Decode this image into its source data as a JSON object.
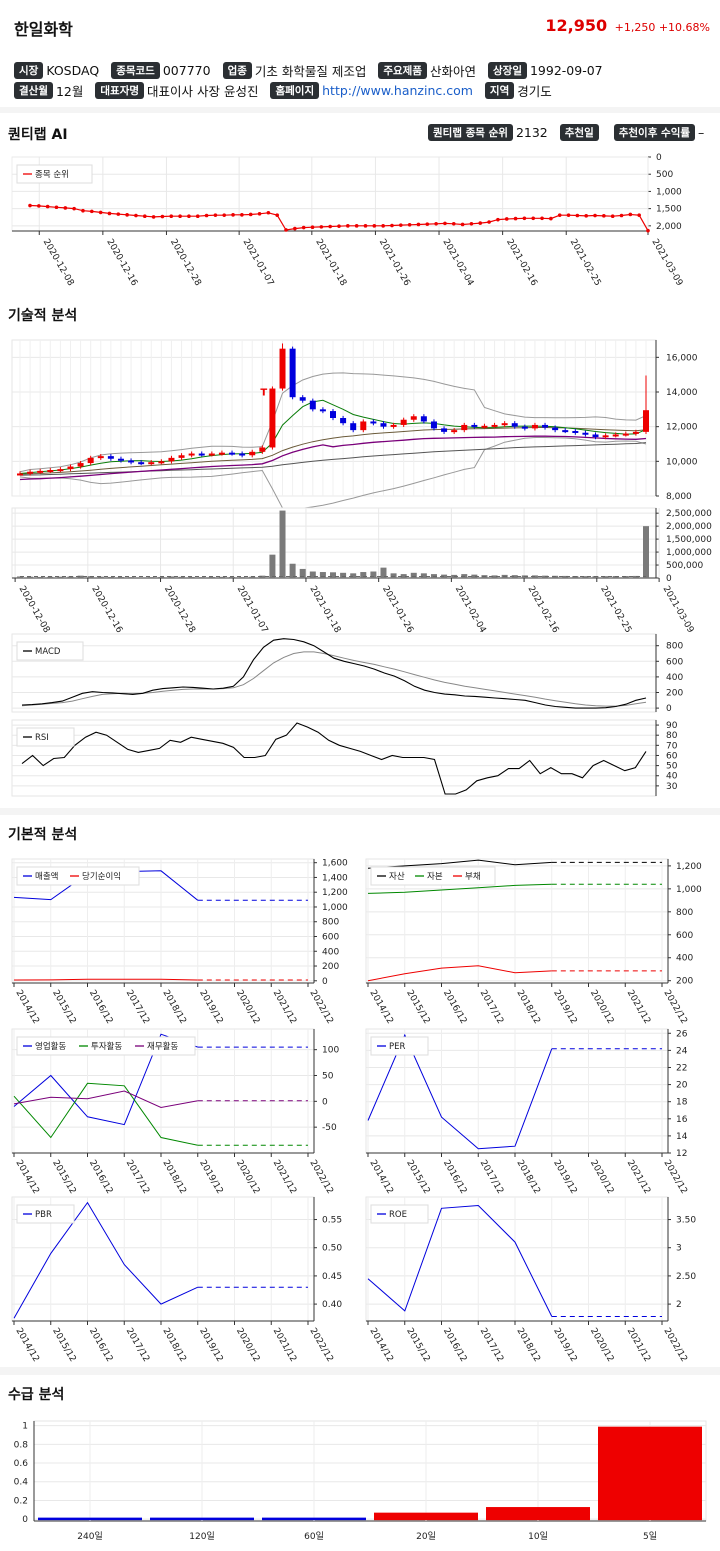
{
  "header": {
    "name": "한일화학",
    "price": "12,950",
    "change": "+1,250",
    "change_pct": "+10.68%"
  },
  "info": {
    "row1": [
      {
        "tag": "시장",
        "value": "KOSDAQ"
      },
      {
        "tag": "종목코드",
        "value": "007770"
      },
      {
        "tag": "업종",
        "value": "기초 화학물질 제조업"
      },
      {
        "tag": "주요제품",
        "value": "산화아연"
      },
      {
        "tag": "상장일",
        "value": "1992-09-07"
      }
    ],
    "row2": [
      {
        "tag": "결산월",
        "value": "12월"
      },
      {
        "tag": "대표자명",
        "value": "대표이사 사장 윤성진"
      },
      {
        "tag": "홈페이지",
        "value": "http://www.hanzinc.com",
        "link": true
      },
      {
        "tag": "지역",
        "value": "경기도"
      }
    ]
  },
  "quant": {
    "title": "퀀티랩 AI",
    "rank_label": "퀀티랩 종목 순위",
    "rank_value": "2132",
    "rec_label": "추천일",
    "ret_label": "추천이후 수익률",
    "ret_value": "–"
  },
  "sections": {
    "tech": "기술적 분석",
    "fund": "기본적 분석",
    "supply": "수급 분석"
  },
  "accent": {
    "red": "#ee0000",
    "blue": "#0000dd",
    "green": "#008800",
    "purple": "#7a007a"
  },
  "chart_data": [
    {
      "id": "rank",
      "type": "line",
      "series": [
        {
          "name": "종목 순위",
          "color": "#ee0000",
          "values": [
            1410,
            1420,
            1440,
            1460,
            1480,
            1500,
            1560,
            1580,
            1610,
            1640,
            1660,
            1680,
            1700,
            1720,
            1740,
            1730,
            1720,
            1720,
            1720,
            1720,
            1700,
            1690,
            1690,
            1680,
            1680,
            1670,
            1650,
            1620,
            1690,
            2120,
            2080,
            2050,
            2040,
            2030,
            2020,
            2010,
            2000,
            2000,
            2000,
            2000,
            2000,
            1990,
            1980,
            1970,
            1960,
            1950,
            1940,
            1930,
            1940,
            1960,
            1940,
            1920,
            1890,
            1820,
            1800,
            1790,
            1780,
            1780,
            1780,
            1790,
            1690,
            1690,
            1700,
            1710,
            1700,
            1710,
            1720,
            1700,
            1670,
            1690,
            2140
          ]
        }
      ],
      "x_ticks": [
        "2020-12-08",
        "2020-12-16",
        "2020-12-28",
        "2021-01-07",
        "2021-01-18",
        "2021-01-26",
        "2021-02-04",
        "2021-02-16",
        "2021-02-25",
        "2021-03-09"
      ],
      "y_ticks": [
        "0",
        "500",
        "1,000",
        "1,500",
        "2,000"
      ],
      "ylim": [
        0,
        2150
      ],
      "y_inverted": true
    },
    {
      "id": "candles",
      "type": "candlestick",
      "close": [
        9300,
        9400,
        9450,
        9500,
        9550,
        9700,
        9900,
        10200,
        10300,
        10150,
        10050,
        9950,
        9900,
        9950,
        10000,
        10200,
        10350,
        10450,
        10400,
        10450,
        10500,
        10450,
        10350,
        10550,
        10800,
        14200,
        16500,
        13700,
        13500,
        13000,
        12900,
        12500,
        12200,
        11800,
        12300,
        12200,
        12000,
        12100,
        12400,
        12600,
        12300,
        11900,
        11700,
        11800,
        12100,
        12000,
        12050,
        12100,
        12200,
        12000,
        11900,
        12100,
        11950,
        11800,
        11750,
        11650,
        11550,
        11400,
        11500,
        11550,
        11600,
        11700,
        12950
      ],
      "ylim": [
        8000,
        17000
      ],
      "y_ticks": [
        "8,000",
        "10,000",
        "12,000",
        "14,000",
        "16,000"
      ],
      "annotation": "T",
      "ma_short": [
        9300,
        9350,
        9400,
        9450,
        9500,
        9580,
        9670,
        9780,
        9890,
        9980,
        10010,
        10030,
        10040,
        10010,
        9990,
        10020,
        10070,
        10150,
        10250,
        10330,
        10390,
        10430,
        10440,
        10460,
        10520,
        11060,
        12090,
        12640,
        13150,
        13430,
        13520,
        13260,
        13000,
        12700,
        12550,
        12420,
        12290,
        12180,
        12150,
        12190,
        12220,
        12190,
        12100,
        12030,
        11990,
        11960,
        11940,
        11950,
        11990,
        12020,
        12030,
        12030,
        12020,
        11990,
        11940,
        11880,
        11800,
        11720,
        11660,
        11610,
        11570,
        11580,
        11830
      ],
      "ma_mid": [
        9250,
        9280,
        9300,
        9330,
        9360,
        9400,
        9440,
        9490,
        9540,
        9590,
        9640,
        9680,
        9720,
        9760,
        9800,
        9840,
        9880,
        9920,
        9960,
        10000,
        10030,
        10060,
        10080,
        10110,
        10160,
        10350,
        10620,
        10820,
        10990,
        11130,
        11250,
        11340,
        11420,
        11470,
        11540,
        11600,
        11640,
        11680,
        11720,
        11770,
        11810,
        11830,
        11840,
        11850,
        11870,
        11880,
        11890,
        11900,
        11920,
        11930,
        11940,
        11950,
        11950,
        11940,
        11930,
        11910,
        11880,
        11850,
        11820,
        11800,
        11780,
        11770,
        11820
      ],
      "ma_long": [
        9200,
        9210,
        9220,
        9240,
        9260,
        9280,
        9300,
        9320,
        9340,
        9360,
        9380,
        9400,
        9420,
        9440,
        9460,
        9480,
        9500,
        9520,
        9540,
        9560,
        9580,
        9600,
        9620,
        9640,
        9660,
        9720,
        9800,
        9870,
        9940,
        10000,
        10060,
        10110,
        10160,
        10210,
        10260,
        10310,
        10350,
        10390,
        10430,
        10470,
        10510,
        10550,
        10580,
        10610,
        10640,
        10670,
        10700,
        10730,
        10760,
        10790,
        10810,
        10830,
        10850,
        10870,
        10890,
        10910,
        10930,
        10950,
        10970,
        10990,
        11010,
        11030,
        11080
      ]
    },
    {
      "id": "volume",
      "type": "bar",
      "values": [
        60000,
        50000,
        40000,
        45000,
        50000,
        55000,
        90000,
        70000,
        50000,
        40000,
        40000,
        35000,
        30000,
        35000,
        40000,
        60000,
        45000,
        40000,
        35000,
        40000,
        45000,
        40000,
        35000,
        50000,
        90000,
        900000,
        2600000,
        550000,
        350000,
        250000,
        230000,
        220000,
        200000,
        180000,
        230000,
        250000,
        400000,
        180000,
        150000,
        200000,
        180000,
        150000,
        130000,
        120000,
        150000,
        130000,
        110000,
        100000,
        120000,
        110000,
        100000,
        100000,
        90000,
        85000,
        80000,
        75000,
        70000,
        70000,
        70000,
        75000,
        75000,
        80000,
        2000000
      ],
      "ylim": [
        0,
        2700000
      ],
      "y_ticks": [
        "0",
        "500,000",
        "1,000,000",
        "1,500,000",
        "2,000,000",
        "2,500,000"
      ],
      "x_ticks": [
        "2020-12-08",
        "2020-12-16",
        "2020-12-28",
        "2021-01-07",
        "2021-01-18",
        "2021-01-26",
        "2021-02-04",
        "2021-02-16",
        "2021-02-25",
        "2021-03-09"
      ]
    },
    {
      "id": "macd",
      "type": "line",
      "series": [
        {
          "name": "MACD",
          "color": "#000000",
          "values": [
            40,
            45,
            55,
            70,
            90,
            140,
            190,
            210,
            200,
            195,
            185,
            175,
            190,
            230,
            250,
            260,
            270,
            265,
            255,
            245,
            255,
            280,
            400,
            620,
            780,
            870,
            890,
            880,
            850,
            800,
            720,
            640,
            600,
            570,
            540,
            500,
            450,
            410,
            350,
            280,
            230,
            200,
            180,
            170,
            155,
            150,
            140,
            130,
            120,
            110,
            100,
            70,
            40,
            20,
            10,
            0,
            0,
            0,
            5,
            20,
            50,
            100,
            130
          ],
          "color2": "#888888",
          "signal": [
            30,
            40,
            50,
            60,
            70,
            90,
            120,
            150,
            175,
            185,
            190,
            188,
            190,
            200,
            215,
            230,
            240,
            245,
            245,
            245,
            250,
            260,
            300,
            380,
            480,
            580,
            650,
            700,
            720,
            720,
            700,
            670,
            640,
            610,
            585,
            560,
            530,
            500,
            465,
            430,
            395,
            360,
            330,
            305,
            280,
            260,
            240,
            220,
            200,
            180,
            160,
            140,
            115,
            95,
            75,
            55,
            40,
            30,
            25,
            25,
            35,
            55,
            75
          ]
        }
      ],
      "y_ticks": [
        "0",
        "200",
        "400",
        "600",
        "800"
      ],
      "ylim": [
        -50,
        950
      ]
    },
    {
      "id": "rsi",
      "type": "line",
      "series": [
        {
          "name": "RSI",
          "color": "#000000",
          "values": [
            52,
            60,
            50,
            57,
            58,
            70,
            78,
            83,
            80,
            73,
            66,
            63,
            65,
            67,
            75,
            73,
            78,
            76,
            74,
            72,
            68,
            58,
            58,
            60,
            76,
            80,
            92,
            88,
            83,
            75,
            70,
            67,
            64,
            60,
            56,
            60,
            58,
            58,
            58,
            56,
            22,
            22,
            26,
            35,
            38,
            40,
            47,
            47,
            55,
            42,
            48,
            42,
            42,
            38,
            50,
            55,
            50,
            45,
            48,
            64
          ]
        }
      ],
      "y_ticks": [
        "30",
        "40",
        "50",
        "60",
        "70",
        "80",
        "90"
      ],
      "ylim": [
        20,
        95
      ]
    },
    {
      "id": "revenue",
      "type": "line",
      "categories": [
        "2014/12",
        "2015/12",
        "2016/12",
        "2017/12",
        "2018/12",
        "2019/12",
        "2020/12",
        "2021/12",
        "2022/12"
      ],
      "series": [
        {
          "name": "매출액",
          "color": "#0000dd",
          "values": [
            1130,
            1100,
            1450,
            1480,
            1490,
            1090,
            1090,
            1090,
            1090
          ]
        },
        {
          "name": "당기순이익",
          "color": "#ee0000",
          "values": [
            10,
            12,
            20,
            22,
            20,
            10,
            10,
            10,
            10
          ]
        }
      ],
      "estimate_from": 5,
      "y_ticks": [
        "0",
        "200",
        "400",
        "600",
        "800",
        "1,000",
        "1,200",
        "1,400",
        "1,600"
      ],
      "ylim": [
        -30,
        1650
      ]
    },
    {
      "id": "balance",
      "type": "line",
      "categories": [
        "2014/12",
        "2015/12",
        "2016/12",
        "2017/12",
        "2018/12",
        "2019/12",
        "2020/12",
        "2021/12",
        "2022/12"
      ],
      "series": [
        {
          "name": "자산",
          "color": "#000000",
          "values": [
            1180,
            1200,
            1220,
            1250,
            1210,
            1230,
            1230,
            1230,
            1230
          ]
        },
        {
          "name": "자본",
          "color": "#008800",
          "values": [
            960,
            970,
            990,
            1010,
            1030,
            1040,
            1040,
            1040,
            1040
          ]
        },
        {
          "name": "부채",
          "color": "#ee0000",
          "values": [
            200,
            260,
            310,
            330,
            270,
            285,
            285,
            285,
            285
          ]
        }
      ],
      "estimate_from": 5,
      "y_ticks": [
        "200",
        "400",
        "600",
        "800",
        "1,000",
        "1,200"
      ],
      "ylim": [
        180,
        1260
      ]
    },
    {
      "id": "cashflow",
      "type": "line",
      "categories": [
        "2014/12",
        "2015/12",
        "2016/12",
        "2017/12",
        "2018/12",
        "2019/12",
        "2020/12",
        "2021/12",
        "2022/12"
      ],
      "series": [
        {
          "name": "영업활동",
          "color": "#0000dd",
          "values": [
            -10,
            50,
            -30,
            -45,
            130,
            105,
            105,
            105,
            105
          ]
        },
        {
          "name": "투자활동",
          "color": "#008800",
          "values": [
            10,
            -70,
            35,
            30,
            -70,
            -85,
            -85,
            -85,
            -85
          ]
        },
        {
          "name": "재무활동",
          "color": "#7a007a",
          "values": [
            -5,
            8,
            5,
            20,
            -12,
            1,
            1,
            1,
            1
          ]
        }
      ],
      "estimate_from": 5,
      "y_ticks": [
        "-50",
        "0",
        "50",
        "100"
      ],
      "ylim": [
        -100,
        140
      ]
    },
    {
      "id": "per",
      "type": "line",
      "categories": [
        "2014/12",
        "2015/12",
        "2016/12",
        "2017/12",
        "2018/12",
        "2019/12",
        "2020/12",
        "2021/12",
        "2022/12"
      ],
      "series": [
        {
          "name": "PER",
          "color": "#0000dd",
          "values": [
            15.8,
            25.8,
            16.2,
            12.5,
            12.8,
            24.2,
            24.2,
            24.2,
            24.2
          ]
        }
      ],
      "estimate_from": 5,
      "y_ticks": [
        "12",
        "14",
        "16",
        "18",
        "20",
        "22",
        "24",
        "26"
      ],
      "ylim": [
        12,
        26.5
      ]
    },
    {
      "id": "pbr",
      "type": "line",
      "categories": [
        "2014/12",
        "2015/12",
        "2016/12",
        "2017/12",
        "2018/12",
        "2019/12",
        "2020/12",
        "2021/12",
        "2022/12"
      ],
      "series": [
        {
          "name": "PBR",
          "color": "#0000dd",
          "values": [
            0.375,
            0.49,
            0.58,
            0.47,
            0.4,
            0.43,
            0.43,
            0.43,
            0.43
          ]
        }
      ],
      "estimate_from": 5,
      "y_ticks": [
        "0.40",
        "0.45",
        "0.50",
        "0.55"
      ],
      "ylim": [
        0.37,
        0.59
      ]
    },
    {
      "id": "roe",
      "type": "line",
      "categories": [
        "2014/12",
        "2015/12",
        "2016/12",
        "2017/12",
        "2018/12",
        "2019/12",
        "2020/12",
        "2021/12",
        "2022/12"
      ],
      "series": [
        {
          "name": "ROE",
          "color": "#0000dd",
          "values": [
            2.45,
            1.88,
            3.7,
            3.75,
            3.1,
            1.78,
            1.78,
            1.78,
            1.78
          ]
        }
      ],
      "estimate_from": 5,
      "y_ticks": [
        "2",
        "2.50",
        "3",
        "3.50"
      ],
      "ylim": [
        1.7,
        3.9
      ]
    },
    {
      "id": "supply",
      "type": "bar",
      "categories": [
        "240일",
        "120일",
        "60일",
        "20일",
        "10일",
        "5일"
      ],
      "values": [
        0,
        0,
        0,
        0.08,
        0.14,
        1.0
      ],
      "colors": [
        "#0000dd",
        "#0000dd",
        "#0000dd",
        "#ee0000",
        "#ee0000",
        "#ee0000"
      ],
      "y_ticks": [
        "0",
        "0.2",
        "0.4",
        "0.6",
        "0.8",
        "1"
      ],
      "ylim": [
        -0.02,
        1.05
      ]
    }
  ]
}
